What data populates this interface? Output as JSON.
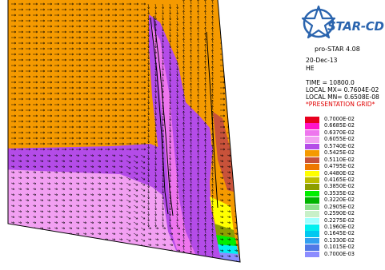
{
  "window": {
    "brand": "STAR-CD",
    "version": "pro-STAR 4.08"
  },
  "info": {
    "date": "20-Dec-13",
    "case": "HE",
    "time": "TIME =  10800.0",
    "local_max": "LOCAL MX= 0.7604E-02",
    "local_min": "LOCAL MN= 0.6508E-08",
    "grid_label": "*PRESENTATION GRID*"
  },
  "legend": {
    "entries": [
      {
        "label": "0.7000E-02",
        "color": "#e8001e"
      },
      {
        "label": "0.6685E-02",
        "color": "#ff14c8"
      },
      {
        "label": "0.6370E-02",
        "color": "#ee76ee"
      },
      {
        "label": "0.6055E-02",
        "color": "#f2a0f2"
      },
      {
        "label": "0.5740E-02",
        "color": "#b44ce8"
      },
      {
        "label": "0.5425E-02",
        "color": "#f59a00"
      },
      {
        "label": "0.5110E-02",
        "color": "#c8523a"
      },
      {
        "label": "0.4795E-02",
        "color": "#ee7800"
      },
      {
        "label": "0.4480E-02",
        "color": "#ffff00"
      },
      {
        "label": "0.4165E-02",
        "color": "#bebe00"
      },
      {
        "label": "0.3850E-02",
        "color": "#8c9e00"
      },
      {
        "label": "0.3535E-02",
        "color": "#00ee00"
      },
      {
        "label": "0.3220E-02",
        "color": "#00b400"
      },
      {
        "label": "0.2905E-02",
        "color": "#8ce08c"
      },
      {
        "label": "0.2590E-02",
        "color": "#c8f0c8"
      },
      {
        "label": "0.2275E-02",
        "color": "#a0ffff"
      },
      {
        "label": "0.1960E-02",
        "color": "#00f0f0"
      },
      {
        "label": "0.1645E-02",
        "color": "#00c8f0"
      },
      {
        "label": "0.1330E-02",
        "color": "#32a0f0"
      },
      {
        "label": "0.1015E-02",
        "color": "#5078e6"
      },
      {
        "label": "0.7000E-03",
        "color": "#8c8cff"
      }
    ]
  }
}
